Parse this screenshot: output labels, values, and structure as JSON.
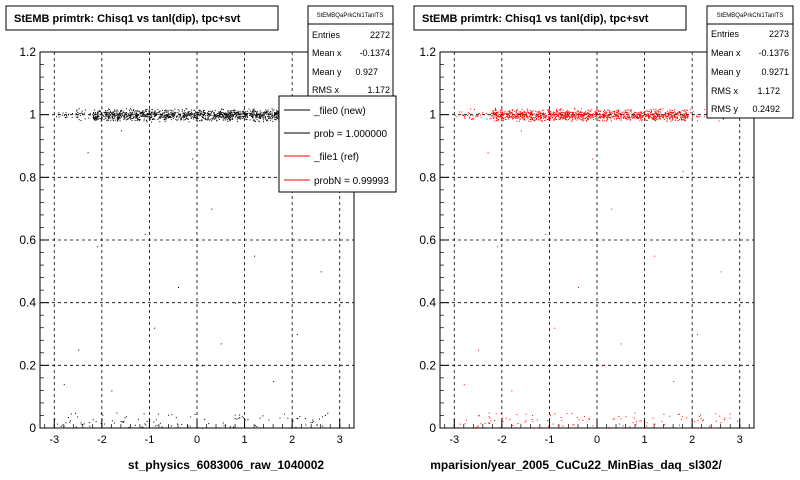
{
  "colors": {
    "background": "#ffffff",
    "axes": "#000000",
    "grid": "#000000",
    "new": "#000000",
    "ref": "#ff0000"
  },
  "chart_data": [
    {
      "type": "scatter",
      "title": "StEMB primtrk: Chisq1 vs tanl(dip), tpc+svt",
      "xlabel": "st_physics_6083006_raw_1040002",
      "ylabel": "",
      "xlim": [
        -3.3,
        3.3
      ],
      "ylim": [
        0,
        1.2
      ],
      "xticks": [
        "-3",
        "-2",
        "-1",
        "0",
        "1",
        "2",
        "3"
      ],
      "yticks": [
        "0",
        "0.2",
        "0.4",
        "0.6",
        "0.8",
        "1",
        "1.2"
      ],
      "grid": true,
      "marker_color": "#000000",
      "stats": {
        "name": "StEMBQaPrkChi1TanlTS",
        "rows": [
          {
            "label": "Entries",
            "value": "2272"
          },
          {
            "label": "Mean x",
            "value": "-0.1374"
          },
          {
            "label": "Mean y",
            "value": "0.927"
          },
          {
            "label": "RMS x",
            "value": "1.172"
          }
        ]
      },
      "legend": {
        "placement": "top-right",
        "entries": [
          {
            "label": "_file0 (new)",
            "color": "#000000"
          },
          {
            "label": "prob = 1.000000",
            "color": "#000000"
          },
          {
            "label": "_file1 (ref)",
            "color": "#ff0000"
          },
          {
            "label": "probN = 0.99993",
            "color": "#ff0000"
          }
        ]
      },
      "series": [
        {
          "band": "near y=1",
          "x_range": [
            -3.0,
            3.0
          ],
          "y_range": [
            0.975,
            1.02
          ],
          "dense_x_range": [
            -2.2,
            1.9
          ],
          "points": 1300
        },
        {
          "band": "near y=0",
          "x_range": [
            -3.0,
            3.0
          ],
          "y_range": [
            0.0,
            0.05
          ],
          "points": 110
        },
        {
          "band": "scattered",
          "points": [
            [
              -1.6,
              0.95
            ],
            [
              -2.1,
              0.58
            ],
            [
              -1.1,
              0.62
            ],
            [
              0.3,
              0.7
            ],
            [
              1.2,
              0.55
            ],
            [
              -0.4,
              0.45
            ],
            [
              0.8,
              0.4
            ],
            [
              -2.5,
              0.25
            ],
            [
              2.1,
              0.3
            ],
            [
              0.1,
              0.2
            ],
            [
              -1.8,
              0.12
            ],
            [
              1.6,
              0.15
            ],
            [
              -0.9,
              0.32
            ],
            [
              2.6,
              0.5
            ],
            [
              -2.8,
              0.14
            ],
            [
              0.5,
              0.27
            ],
            [
              -0.1,
              0.86
            ],
            [
              1.8,
              0.82
            ],
            [
              -2.3,
              0.88
            ]
          ]
        }
      ]
    },
    {
      "type": "scatter",
      "title": "StEMB primtrk: Chisq1 vs tanl(dip), tpc+svt",
      "xlabel": "mparision/year_2005_CuCu22_MinBias_daq_sl302/",
      "ylabel": "",
      "xlim": [
        -3.3,
        3.3
      ],
      "ylim": [
        0,
        1.2
      ],
      "xticks": [
        "-3",
        "-2",
        "-1",
        "0",
        "1",
        "2",
        "3"
      ],
      "yticks": [
        "0",
        "0.2",
        "0.4",
        "0.6",
        "0.8",
        "1",
        "1.2"
      ],
      "grid": true,
      "marker_color": "#ff0000",
      "stats": {
        "name": "StEMBQaPrkChi1TanlTS",
        "rows": [
          {
            "label": "Entries",
            "value": "2273"
          },
          {
            "label": "Mean x",
            "value": "-0.1376"
          },
          {
            "label": "Mean y",
            "value": "0.9271"
          },
          {
            "label": "RMS x",
            "value": "1.172"
          },
          {
            "label": "RMS y",
            "value": "0.2492"
          }
        ]
      },
      "series": [
        {
          "band": "near y=1",
          "x_range": [
            -3.0,
            3.0
          ],
          "y_range": [
            0.975,
            1.02
          ],
          "dense_x_range": [
            -2.2,
            1.9
          ],
          "points": 1300
        },
        {
          "band": "near y=0",
          "x_range": [
            -3.0,
            3.0
          ],
          "y_range": [
            0.0,
            0.05
          ],
          "points": 110
        },
        {
          "band": "scattered",
          "points": [
            [
              -1.6,
              0.95
            ],
            [
              -2.1,
              0.58
            ],
            [
              -1.1,
              0.62
            ],
            [
              0.3,
              0.7
            ],
            [
              1.2,
              0.55
            ],
            [
              -0.4,
              0.45
            ],
            [
              0.8,
              0.4
            ],
            [
              -2.5,
              0.25
            ],
            [
              2.1,
              0.3
            ],
            [
              0.1,
              0.2
            ],
            [
              -1.8,
              0.12
            ],
            [
              1.6,
              0.15
            ],
            [
              -0.9,
              0.32
            ],
            [
              2.6,
              0.5
            ],
            [
              -2.8,
              0.14
            ],
            [
              0.5,
              0.27
            ],
            [
              -0.1,
              0.86
            ],
            [
              1.8,
              0.82
            ],
            [
              -2.3,
              0.88
            ]
          ]
        }
      ]
    }
  ]
}
